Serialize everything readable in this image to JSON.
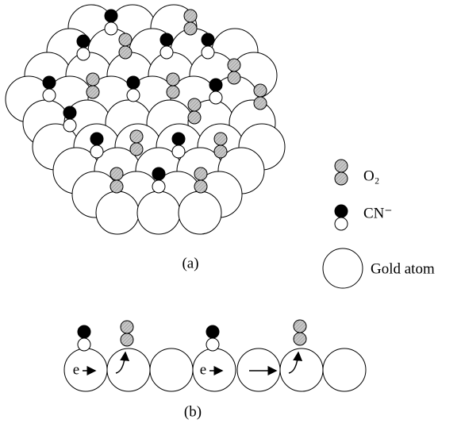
{
  "panel_a": {
    "label": "(a)"
  },
  "legend": {
    "o2": "O₂",
    "cn": "CN⁻",
    "gold": "Gold atom"
  },
  "panel_b": {
    "label": "(b)",
    "electrons": [
      "e",
      "e"
    ]
  }
}
